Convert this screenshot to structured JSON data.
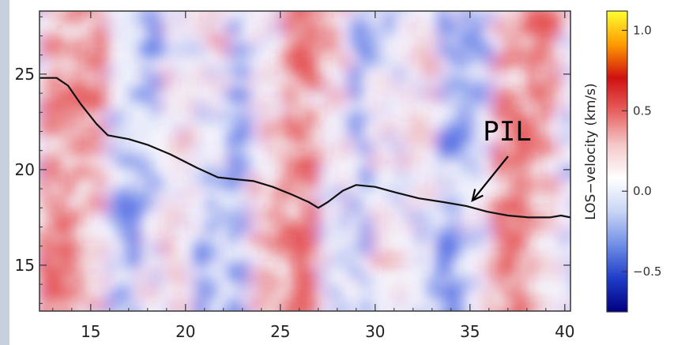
{
  "chart_data": {
    "type": "heatmap",
    "title": "",
    "xlabel": "",
    "ylabel": "",
    "xlim": [
      12.3,
      40.3
    ],
    "ylim": [
      12.6,
      28.3
    ],
    "x_ticks": [
      "15",
      "20",
      "25",
      "30",
      "35",
      "40"
    ],
    "x_tick_values": [
      15,
      20,
      25,
      30,
      35,
      40
    ],
    "y_ticks": [
      "15",
      "20",
      "25"
    ],
    "y_tick_values": [
      15,
      20,
      25
    ],
    "colorbar": {
      "label": "LOS−velocity  (km/s)",
      "range": [
        -0.75,
        1.12
      ],
      "ticks": [
        "1.0",
        "0.5",
        "0.0",
        "−0.5"
      ],
      "tick_values": [
        1.0,
        0.5,
        0.0,
        -0.5
      ],
      "colormap": [
        "#000080",
        "#1e3cc8",
        "#6f8ee6",
        "#c8d4f4",
        "#ffffff",
        "#f4c8c8",
        "#e86060",
        "#d01010",
        "#ff9a00",
        "#ffff30"
      ]
    },
    "series": [
      {
        "type": "line",
        "x": [
          12.3,
          13.2,
          13.8,
          14.5,
          15.3,
          15.9,
          17.0,
          18.0,
          19.2,
          20.6,
          21.7,
          22.6,
          23.6,
          24.6,
          25.6,
          26.5,
          27.0,
          27.5,
          28.3,
          29.0,
          30.0,
          31.1,
          32.3,
          33.6,
          34.8,
          35.9,
          37.0,
          38.1,
          39.2,
          39.8,
          40.3
        ],
        "y": [
          24.8,
          24.8,
          24.4,
          23.4,
          22.4,
          21.8,
          21.6,
          21.3,
          20.8,
          20.1,
          19.6,
          19.5,
          19.4,
          19.1,
          18.7,
          18.3,
          18.0,
          18.3,
          18.9,
          19.2,
          19.1,
          18.8,
          18.5,
          18.3,
          18.1,
          17.8,
          17.6,
          17.5,
          17.5,
          17.6,
          17.5
        ]
      }
    ],
    "annotations": [
      {
        "text": "PIL",
        "arrow_to": [
          35.0,
          18.3
        ]
      }
    ],
    "colors": {
      "negative": "#2244dd",
      "positive": "#e02020",
      "line": "#111111",
      "frame": "#333333"
    }
  }
}
